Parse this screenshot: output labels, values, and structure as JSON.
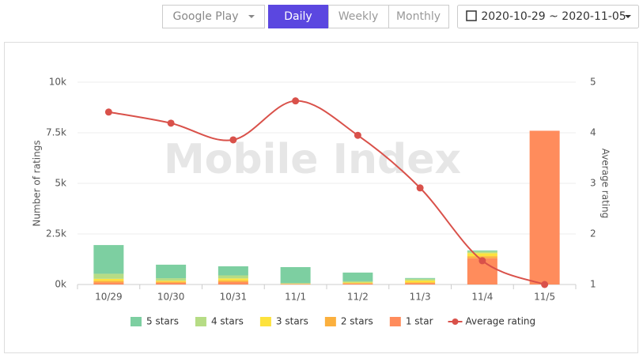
{
  "toolbar": {
    "store": "Google Play",
    "periods": [
      "Daily",
      "Weekly",
      "Monthly"
    ],
    "date_range": "2020-10-29 ~ 2020-11-05"
  },
  "chart_data": {
    "type": "bar",
    "watermark": "Mobile Index",
    "y_label": "Number of ratings",
    "y2_label": "Average rating",
    "categories": [
      "10/29",
      "10/30",
      "10/31",
      "11/1",
      "11/2",
      "11/3",
      "11/4",
      "11/5"
    ],
    "series": [
      {
        "name": "5 stars",
        "color": "#7dcfa1",
        "values": [
          1420,
          670,
          450,
          790,
          430,
          40,
          50,
          0
        ]
      },
      {
        "name": "4 stars",
        "color": "#b6dc85",
        "values": [
          250,
          120,
          150,
          30,
          60,
          80,
          80,
          0
        ]
      },
      {
        "name": "3 stars",
        "color": "#fde23d",
        "values": [
          100,
          50,
          100,
          10,
          30,
          100,
          150,
          0
        ]
      },
      {
        "name": "2 stars",
        "color": "#fbb03e",
        "values": [
          80,
          60,
          80,
          10,
          30,
          40,
          100,
          0
        ]
      },
      {
        "name": "1 star",
        "color": "#ff8c5c",
        "values": [
          100,
          80,
          120,
          20,
          40,
          60,
          1300,
          7600
        ]
      },
      {
        "name": "Average rating",
        "color": "#d9514a",
        "type": "line",
        "axis": "y2",
        "values": [
          4.41,
          4.19,
          3.86,
          4.63,
          3.95,
          2.91,
          1.47,
          1.0
        ]
      }
    ],
    "ylim": [
      0,
      10000
    ],
    "yticks": [
      {
        "value": 0,
        "label": "0k"
      },
      {
        "value": 2500,
        "label": "2.5k"
      },
      {
        "value": 5000,
        "label": "5k"
      },
      {
        "value": 7500,
        "label": "7.5k"
      },
      {
        "value": 10000,
        "label": "10k"
      }
    ],
    "y2lim": [
      1,
      5
    ],
    "y2ticks": [
      1,
      2,
      3,
      4,
      5
    ],
    "grid": true,
    "legend": "bottom"
  }
}
